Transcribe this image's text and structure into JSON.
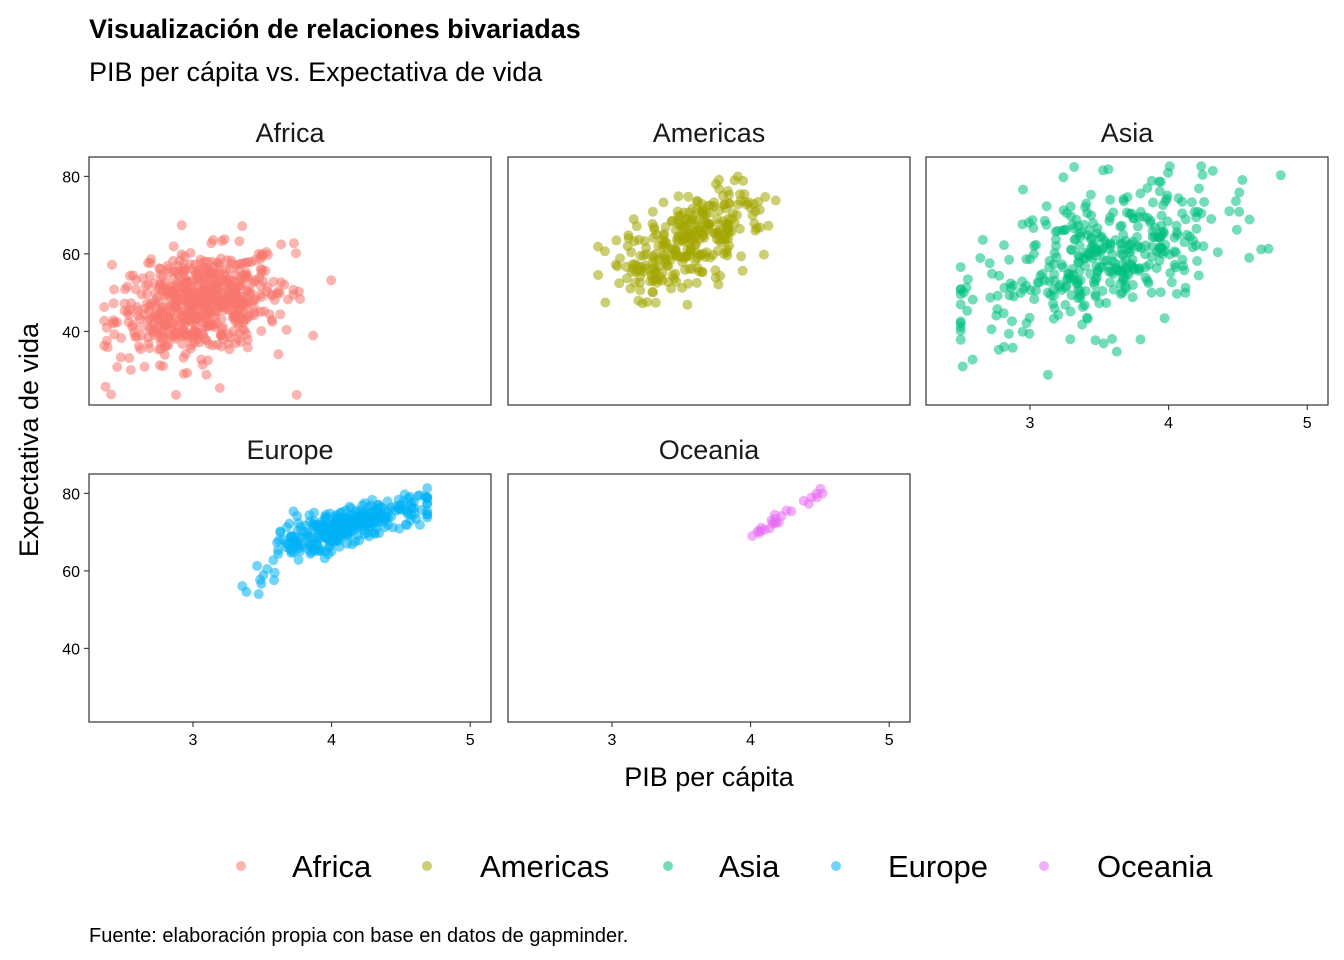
{
  "chart_data": {
    "type": "scatter",
    "title": "Visualización de relaciones bivariadas",
    "subtitle": "PIB per cápita vs. Expectativa de vida",
    "xlabel": "PIB per cápita",
    "ylabel": "Expectativa de vida",
    "caption": "Fuente: elaboración propia con base en datos de gapminder.",
    "xlim": [
      2.25,
      5.15
    ],
    "ylim": [
      21,
      85
    ],
    "x_ticks": [
      3,
      4,
      5
    ],
    "x_tick_labels": [
      "3",
      "4",
      "5"
    ],
    "y_ticks": [
      40,
      60,
      80
    ],
    "y_tick_labels": [
      "40",
      "60",
      "80"
    ],
    "legend_position": "bottom",
    "facets": [
      {
        "name": "Africa",
        "color": "#F8766D",
        "x_range": [
          2.36,
          4.35
        ],
        "y_center": 48,
        "points": 624
      },
      {
        "name": "Americas",
        "color": "#A3A500",
        "x_range": [
          2.9,
          4.55
        ],
        "y_center": 64,
        "points": 300
      },
      {
        "name": "Asia",
        "color": "#00BF7D",
        "x_range": [
          2.5,
          5.05
        ],
        "y_center": 60,
        "points": 396
      },
      {
        "name": "Europe",
        "color": "#00B0F6",
        "x_range": [
          2.97,
          4.69
        ],
        "y_center": 72,
        "points": 360
      },
      {
        "name": "Oceania",
        "color": "#E76BF3",
        "x_range": [
          4.0,
          4.55
        ],
        "y_center": 74,
        "points": 24
      }
    ],
    "series": [
      {
        "name": "Africa",
        "color": "#F8766D"
      },
      {
        "name": "Americas",
        "color": "#A3A500"
      },
      {
        "name": "Asia",
        "color": "#00BF7D"
      },
      {
        "name": "Europe",
        "color": "#00B0F6"
      },
      {
        "name": "Oceania",
        "color": "#E76BF3"
      }
    ]
  }
}
